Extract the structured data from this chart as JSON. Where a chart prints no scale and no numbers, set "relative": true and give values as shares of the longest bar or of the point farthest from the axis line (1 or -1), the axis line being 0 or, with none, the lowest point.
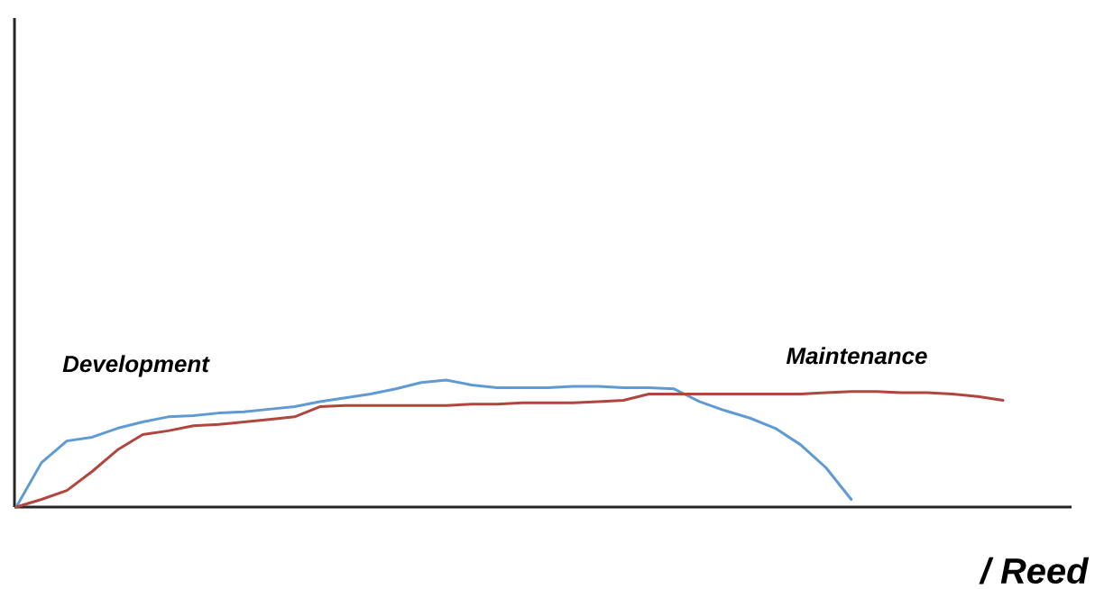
{
  "chart_data": {
    "type": "line",
    "relative": true,
    "categories": [
      null,
      null,
      null,
      null,
      null,
      null,
      null,
      null,
      null,
      null,
      null,
      null,
      null,
      null,
      null,
      null,
      null,
      null,
      null,
      null,
      null,
      null,
      null,
      null,
      null,
      null,
      null,
      null,
      null,
      null,
      null,
      null,
      null,
      null,
      null,
      null,
      null,
      null,
      null,
      null
    ],
    "series": [
      {
        "name": "Development",
        "color": "#5f9bd2",
        "values": [
          0,
          0.35,
          0.52,
          0.55,
          0.62,
          0.67,
          0.71,
          0.72,
          0.74,
          0.75,
          0.77,
          0.79,
          0.83,
          0.86,
          0.89,
          0.93,
          0.98,
          1,
          0.96,
          0.94,
          0.94,
          0.94,
          0.95,
          0.95,
          0.94,
          0.94,
          0.93,
          0.83,
          0.76,
          0.7,
          0.62,
          0.49,
          0.31,
          0.06,
          null,
          null,
          null,
          null,
          null,
          null
        ]
      },
      {
        "name": "Maintenance",
        "color": "#b0463e",
        "values": [
          0,
          0.06,
          0.13,
          0.28,
          0.45,
          0.57,
          0.6,
          0.64,
          0.65,
          0.67,
          0.69,
          0.71,
          0.79,
          0.8,
          0.8,
          0.8,
          0.8,
          0.8,
          0.81,
          0.81,
          0.82,
          0.82,
          0.82,
          0.83,
          0.84,
          0.89,
          0.89,
          0.89,
          0.89,
          0.89,
          0.89,
          0.89,
          0.9,
          0.91,
          0.91,
          0.9,
          0.9,
          0.89,
          0.87,
          0.84
        ]
      }
    ],
    "annotations": [
      "/ Reed"
    ],
    "marker": "none",
    "line_style": "solid"
  }
}
